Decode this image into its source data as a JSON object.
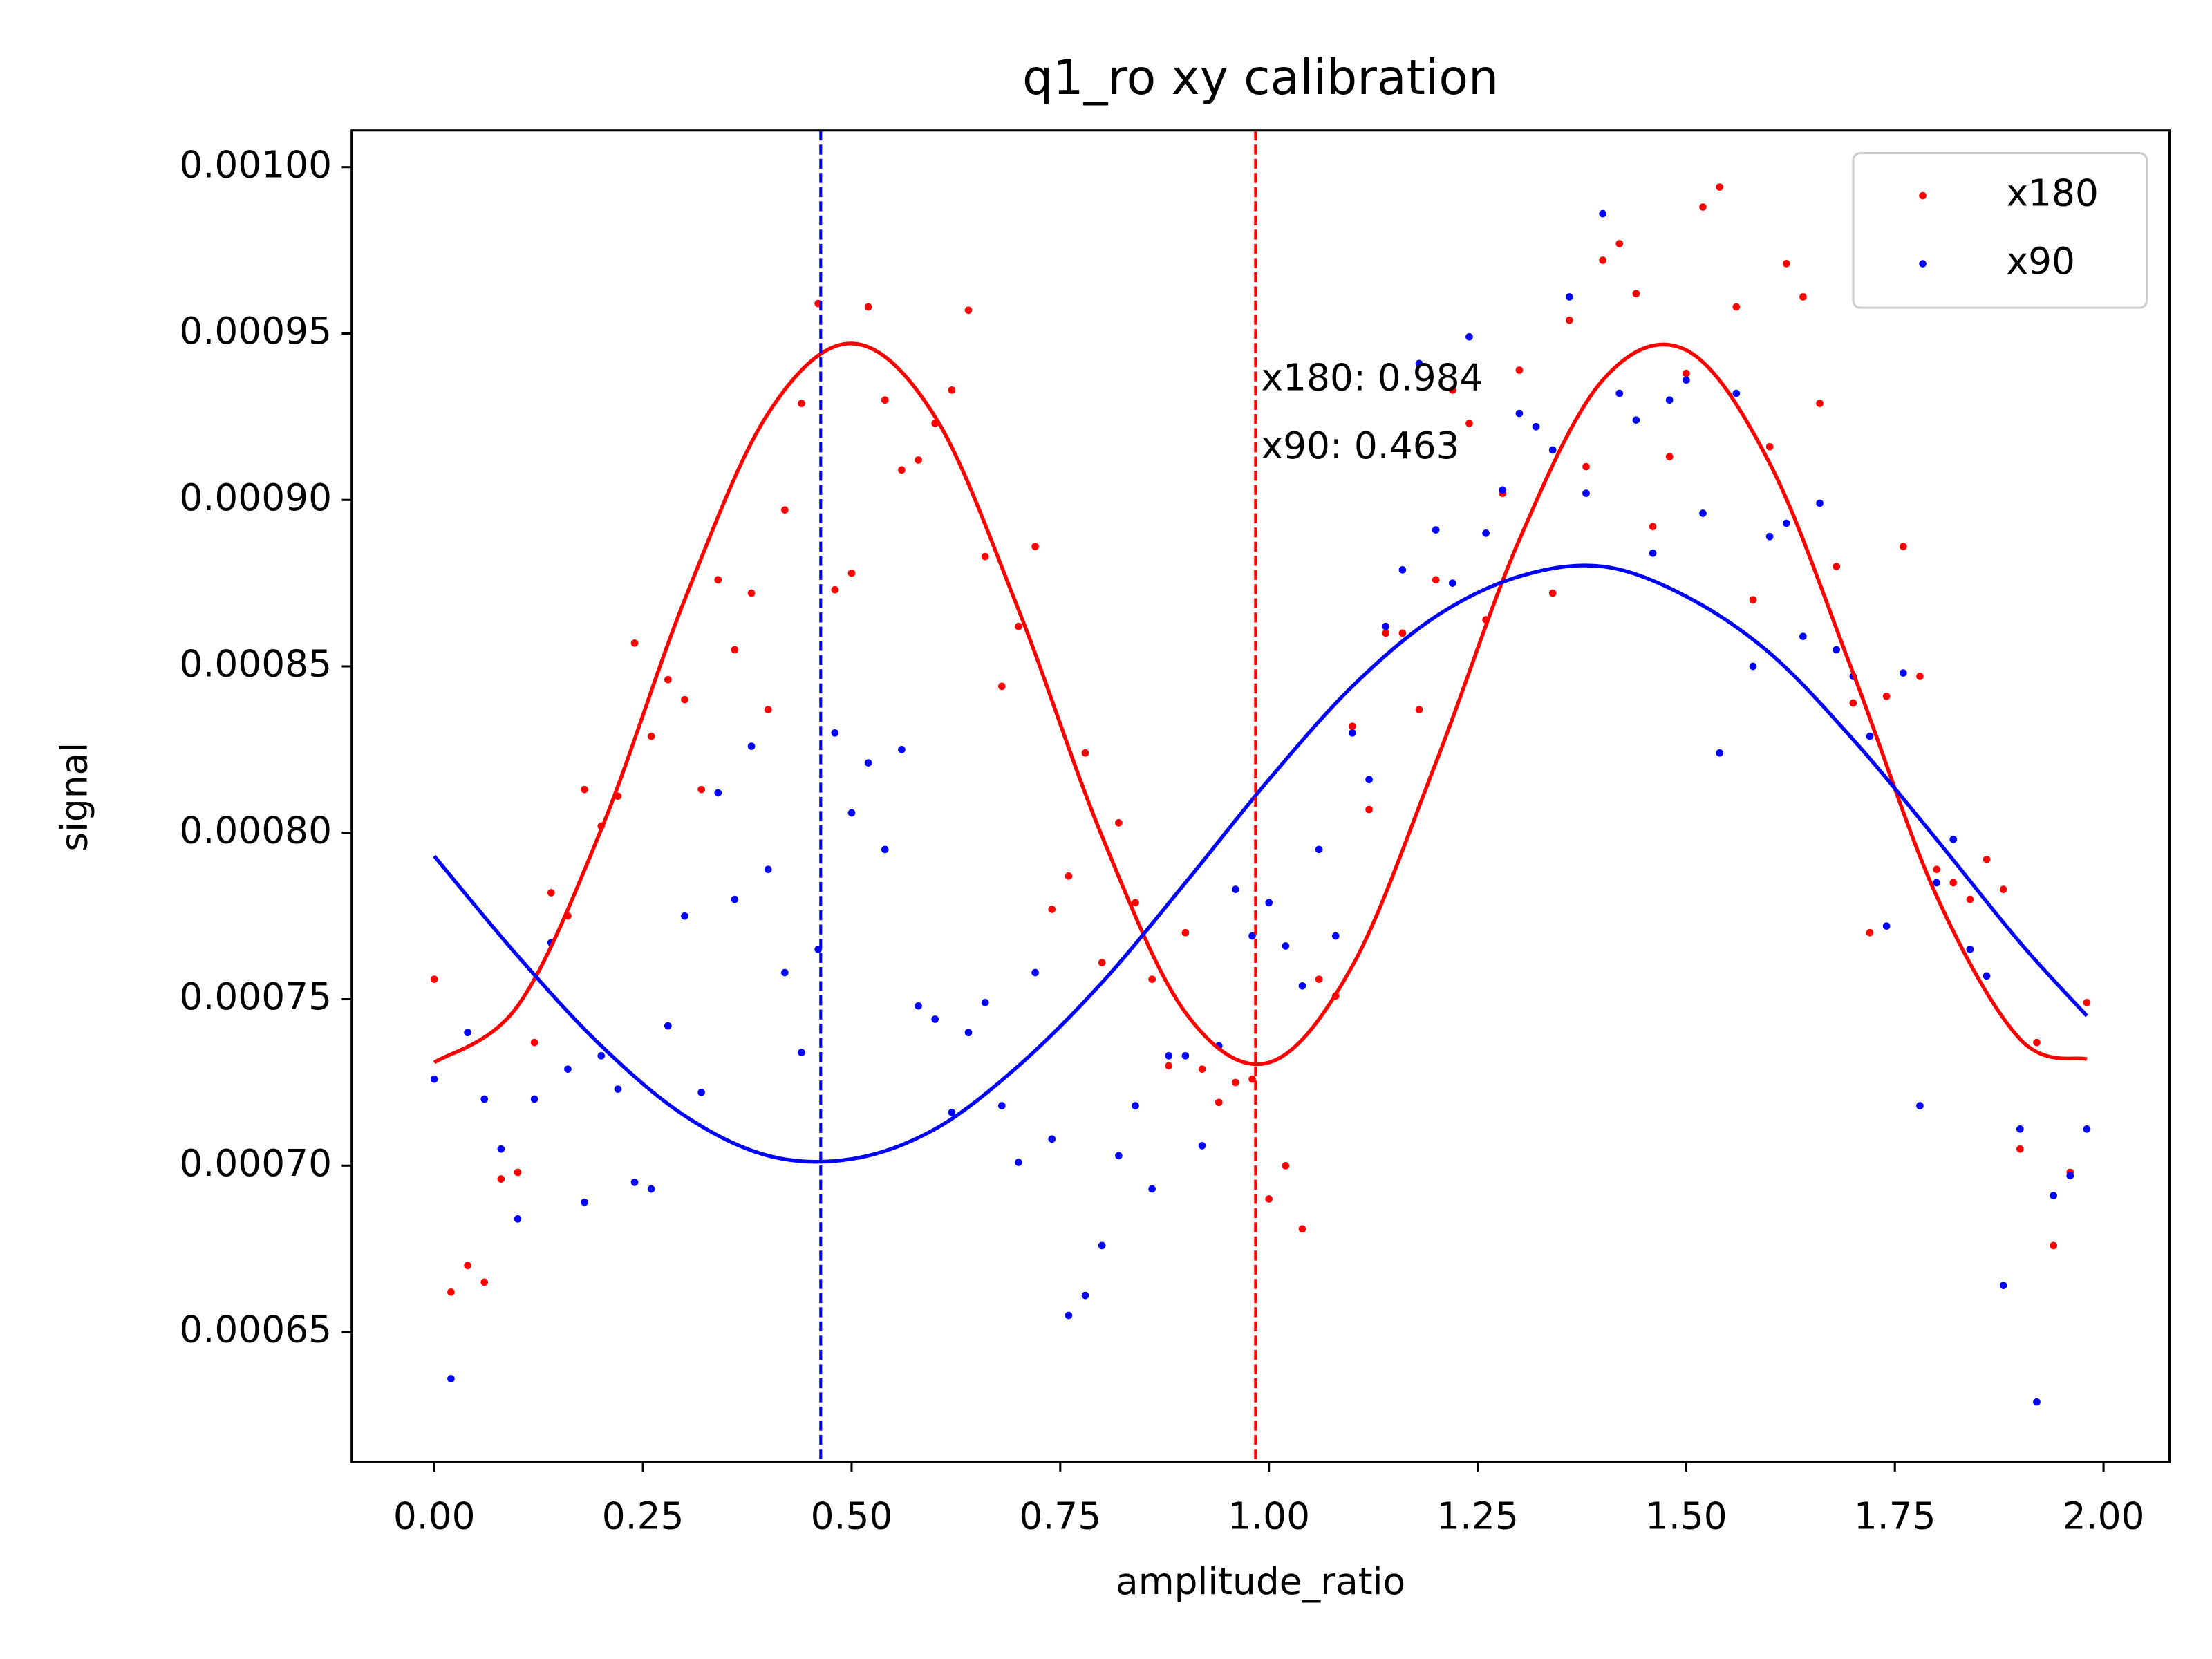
{
  "chart_data": {
    "type": "scatter",
    "title": "q1_ro xy calibration",
    "xlabel": "amplitude_ratio",
    "ylabel": "signal",
    "xlim": [
      -0.099,
      2.079
    ],
    "ylim": [
      0.000611,
      0.001011
    ],
    "xticks": [
      {
        "value": 0,
        "label": "0.00"
      },
      0.25,
      {
        "value": 0.5,
        "label": "0.50"
      },
      0.75,
      {
        "value": 1,
        "label": "1.00"
      },
      1.25,
      {
        "value": 1.5,
        "label": "1.50"
      },
      1.75,
      {
        "value": 2,
        "label": "2.00"
      }
    ],
    "yticks": [
      {
        "value": 0.00065,
        "label": "0.00065"
      },
      {
        "value": 0.0007,
        "label": "0.00070"
      },
      {
        "value": 0.00075,
        "label": "0.00075"
      },
      {
        "value": 0.0008,
        "label": "0.00080"
      },
      {
        "value": 0.00085,
        "label": "0.00085"
      },
      {
        "value": 0.0009,
        "label": "0.00090"
      },
      {
        "value": 0.00095,
        "label": "0.00095"
      },
      {
        "value": 0.001,
        "label": "0.00100"
      }
    ],
    "legend": "upper right",
    "x": [
      0,
      0.02,
      0.04,
      0.06,
      0.08,
      0.1,
      0.12,
      0.14,
      0.16,
      0.18,
      0.2,
      0.22,
      0.24,
      0.26,
      0.28,
      0.3,
      0.32,
      0.34,
      0.36,
      0.38,
      0.4,
      0.42,
      0.44,
      0.46,
      0.48,
      0.5,
      0.52,
      0.54,
      0.56,
      0.58,
      0.6,
      0.62,
      0.64,
      0.66,
      0.68,
      0.7,
      0.72,
      0.74,
      0.76,
      0.78,
      0.8,
      0.82,
      0.84,
      0.86,
      0.88,
      0.9,
      0.92,
      0.94,
      0.96,
      0.98,
      1,
      1.02,
      1.04,
      1.06,
      1.08,
      1.1,
      1.12,
      1.14,
      1.16,
      1.18,
      1.2,
      1.22,
      1.24,
      1.26,
      1.28,
      1.3,
      1.32,
      1.34,
      1.36,
      1.38,
      1.4,
      1.42,
      1.44,
      1.46,
      1.48,
      1.5,
      1.52,
      1.54,
      1.56,
      1.58,
      1.6,
      1.62,
      1.64,
      1.66,
      1.68,
      1.7,
      1.72,
      1.74,
      1.76,
      1.78,
      1.8,
      1.82,
      1.84,
      1.86,
      1.88,
      1.9,
      1.92,
      1.94,
      1.96,
      1.98
    ],
    "series": [
      {
        "name": "x180",
        "color": "#ff0000",
        "values": [
          0.000756,
          0.000662,
          0.00067,
          0.000665,
          0.000696,
          0.000698,
          0.000737,
          0.000782,
          0.000775,
          0.000813,
          0.000802,
          0.000811,
          0.000857,
          0.000829,
          0.000846,
          0.00084,
          0.000813,
          0.000876,
          0.000855,
          0.000872,
          0.000837,
          0.000897,
          0.000929,
          0.000959,
          0.000873,
          0.000878,
          0.000958,
          0.00093,
          0.000909,
          0.000912,
          0.000923,
          0.000933,
          0.000957,
          0.000883,
          0.000844,
          0.000862,
          0.000886,
          0.000777,
          0.000787,
          0.000824,
          0.000761,
          0.000803,
          0.000779,
          0.000756,
          0.00073,
          0.00077,
          0.000729,
          0.000719,
          0.000725,
          0.000726,
          0.00069,
          0.0007,
          0.000681,
          0.000756,
          0.000751,
          0.000832,
          0.000807,
          0.00086,
          0.00086,
          0.000837,
          0.000876,
          0.000933,
          0.000923,
          0.000864,
          0.000902,
          0.000939,
          0.000922,
          0.000872,
          0.000954,
          0.00091,
          0.000972,
          0.000977,
          0.000962,
          0.000892,
          0.000913,
          0.000938,
          0.000988,
          0.000994,
          0.000958,
          0.00087,
          0.000916,
          0.000971,
          0.000961,
          0.000929,
          0.00088,
          0.000839,
          0.00077,
          0.000841,
          0.000886,
          0.000847,
          0.000789,
          0.000785,
          0.00078,
          0.000792,
          0.000783,
          0.000705,
          0.000737,
          0.000676,
          0.000698,
          0.000749
        ]
      },
      {
        "name": "x90",
        "color": "#0000ff",
        "values": [
          0.000726,
          0.000636,
          0.00074,
          0.00072,
          0.000705,
          0.000684,
          0.00072,
          0.000767,
          0.000729,
          0.000689,
          0.000733,
          0.000723,
          0.000695,
          0.000693,
          0.000742,
          0.000775,
          0.000722,
          0.000812,
          0.00078,
          0.000826,
          0.000789,
          0.000758,
          0.000734,
          0.000765,
          0.00083,
          0.000806,
          0.000821,
          0.000795,
          0.000825,
          0.000748,
          0.000744,
          0.000716,
          0.00074,
          0.000749,
          0.000718,
          0.000701,
          0.000758,
          0.000708,
          0.000655,
          0.000661,
          0.000676,
          0.000703,
          0.000718,
          0.000693,
          0.000733,
          0.000733,
          0.000706,
          0.000736,
          0.000783,
          0.000769,
          0.000779,
          0.000766,
          0.000754,
          0.000795,
          0.000769,
          0.00083,
          0.000816,
          0.000862,
          0.000879,
          0.000941,
          0.000891,
          0.000875,
          0.000949,
          0.00089,
          0.000903,
          0.000926,
          0.000922,
          0.000915,
          0.000961,
          0.000902,
          0.000986,
          0.000932,
          0.000924,
          0.000884,
          0.00093,
          0.000936,
          0.000896,
          0.000824,
          0.000932,
          0.00085,
          0.000889,
          0.000893,
          0.000859,
          0.000899,
          0.000855,
          0.000847,
          0.000829,
          0.000772,
          0.000848,
          0.000718,
          0.000785,
          0.000798,
          0.000765,
          0.000757,
          0.000664,
          0.000711,
          0.000629,
          0.000691,
          0.000697,
          0.000711
        ]
      }
    ],
    "fits": [
      {
        "color": "#ff0000",
        "x": [
          0,
          0.1,
          0.2,
          0.3,
          0.4,
          0.5,
          0.6,
          0.7,
          0.8,
          0.9,
          1,
          1.1,
          1.2,
          1.3,
          1.4,
          1.5,
          1.6,
          1.7,
          1.8,
          1.9,
          1.98
        ],
        "values": [
          0.000731,
          0.000748,
          0.000801,
          0.00087,
          0.000926,
          0.000947,
          0.000925,
          0.000867,
          0.000799,
          0.000746,
          0.000731,
          0.00076,
          0.000821,
          0.000888,
          0.000936,
          0.000945,
          0.000911,
          0.000848,
          0.000781,
          0.000738,
          0.000732
        ]
      },
      {
        "color": "#0000ff",
        "x": [
          0,
          0.1,
          0.2,
          0.3,
          0.4,
          0.5,
          0.6,
          0.7,
          0.8,
          0.9,
          1,
          1.1,
          1.2,
          1.3,
          1.4,
          1.5,
          1.6,
          1.7,
          1.8,
          1.9,
          1.98
        ],
        "values": [
          0.000793,
          0.000763,
          0.000736,
          0.000715,
          0.000703,
          0.000702,
          0.000711,
          0.00073,
          0.000755,
          0.000785,
          0.000816,
          0.000844,
          0.000865,
          0.000877,
          0.00088,
          0.000871,
          0.000854,
          0.000828,
          0.000798,
          0.000767,
          0.000745
        ]
      }
    ],
    "vlines": [
      {
        "x": 0.463,
        "color": "#0000ff"
      },
      {
        "x": 0.984,
        "color": "#ff0000"
      }
    ],
    "annotations": [
      "x180: 0.984",
      "x90: 0.463"
    ]
  }
}
